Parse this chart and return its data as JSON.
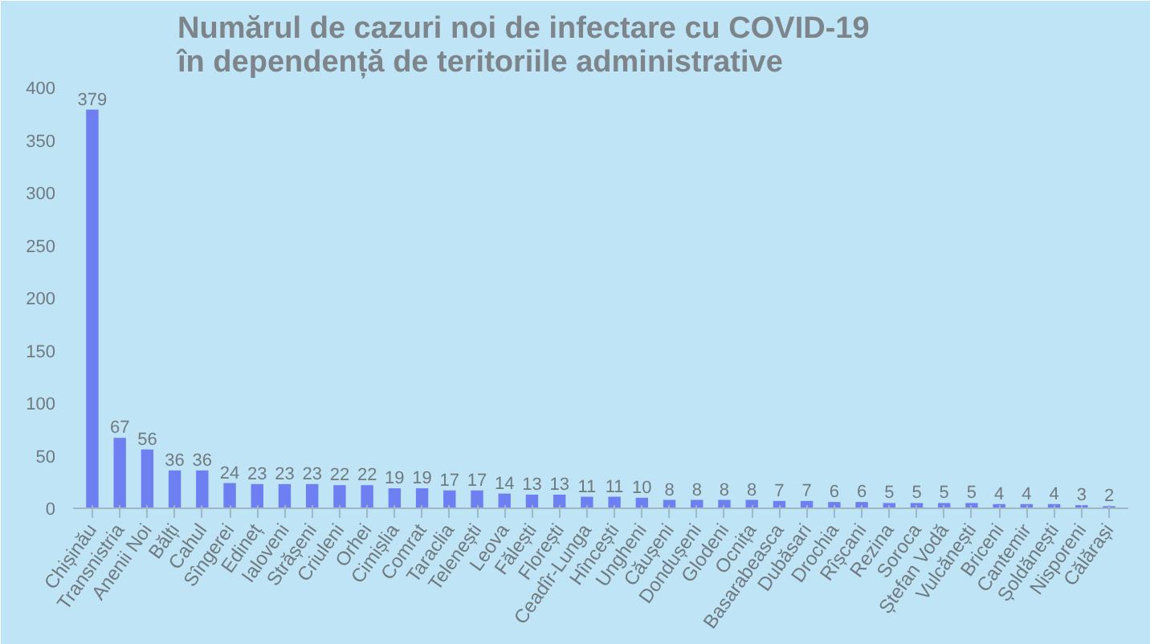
{
  "chart_data": {
    "type": "bar",
    "title": "Numărul de cazuri noi de infectare cu COVID-19\nîn dependență de teritoriile administrative",
    "categories": [
      "Chișinău",
      "Transnistria",
      "Anenii Noi",
      "Bălți",
      "Cahul",
      "Sîngerei",
      "Edineț",
      "Ialoveni",
      "Strășeni",
      "Criuleni",
      "Orhei",
      "Cimișlia",
      "Comrat",
      "Taraclia",
      "Telenești",
      "Leova",
      "Fălești",
      "Florești",
      "Ceadîr-Lunga",
      "Hîncești",
      "Ungheni",
      "Căușeni",
      "Dondușeni",
      "Glodeni",
      "Ocnița",
      "Basarabeasca",
      "Dubăsari",
      "Drochia",
      "Rîșcani",
      "Rezina",
      "Soroca",
      "Ștefan Vodă",
      "Vulcănești",
      "Briceni",
      "Cantemir",
      "Șoldănești",
      "Nisporeni",
      "Călărași"
    ],
    "values": [
      379,
      67,
      56,
      36,
      36,
      24,
      23,
      23,
      23,
      22,
      22,
      19,
      19,
      17,
      17,
      14,
      13,
      13,
      11,
      11,
      10,
      8,
      8,
      8,
      8,
      7,
      7,
      6,
      6,
      5,
      5,
      5,
      5,
      4,
      4,
      4,
      3,
      2
    ],
    "color": "#6e7ff2",
    "ylim": [
      0,
      400
    ],
    "yticks": [
      0,
      50,
      100,
      150,
      200,
      250,
      300,
      350,
      400
    ],
    "data_labels": true,
    "grid": false
  }
}
